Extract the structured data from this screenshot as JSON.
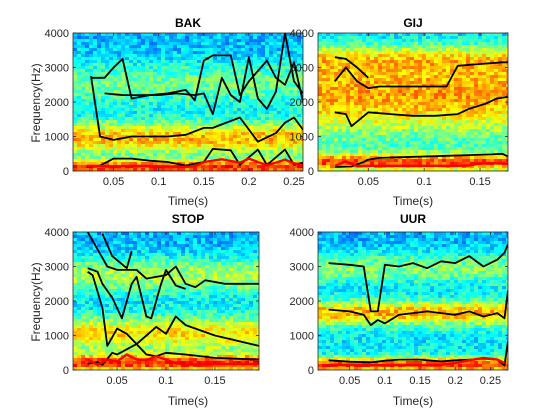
{
  "figure": {
    "colors": {
      "formant": "#000000",
      "pitch": "#ff0000",
      "axis": "#262626"
    },
    "panels": [
      {
        "title": "BAK",
        "xlabel": "Time(s)",
        "ylabel": "Frequency(Hz)",
        "xlim": [
          0.005,
          0.26
        ],
        "ylim": [
          0,
          4000
        ],
        "xticks": [
          "0.05",
          "0.1",
          "0.15",
          "0.2",
          "0.25"
        ],
        "xtick_values": [
          0.05,
          0.1,
          0.15,
          0.2,
          0.25
        ],
        "yticks": [
          "0",
          "1000",
          "2000",
          "3000",
          "4000"
        ],
        "ytick_values": [
          0,
          1000,
          2000,
          3000,
          4000
        ]
      },
      {
        "title": "GIJ",
        "xlabel": "Time(s)",
        "ylabel": "",
        "xlim": [
          0.005,
          0.175
        ],
        "ylim": [
          0,
          4000
        ],
        "xticks": [
          "0.05",
          "0.1",
          "0.15"
        ],
        "xtick_values": [
          0.05,
          0.1,
          0.15
        ],
        "yticks": [
          "0",
          "1000",
          "2000",
          "3000",
          "4000"
        ],
        "ytick_values": [
          0,
          1000,
          2000,
          3000,
          4000
        ]
      },
      {
        "title": "STOP",
        "xlabel": "Time(s)",
        "ylabel": "Frequency(Hz)",
        "xlim": [
          0.005,
          0.195
        ],
        "ylim": [
          0,
          4000
        ],
        "xticks": [
          "0.05",
          "0.1",
          "0.15"
        ],
        "xtick_values": [
          0.05,
          0.1,
          0.15
        ],
        "yticks": [
          "0",
          "1000",
          "2000",
          "3000",
          "4000"
        ],
        "ytick_values": [
          0,
          1000,
          2000,
          3000,
          4000
        ]
      },
      {
        "title": "UUR",
        "xlabel": "Time(s)",
        "ylabel": "",
        "xlim": [
          0.005,
          0.275
        ],
        "ylim": [
          0,
          4000
        ],
        "xticks": [
          "0.05",
          "0.1",
          "0.15",
          "0.2",
          "0.25"
        ],
        "xtick_values": [
          0.05,
          0.1,
          0.15,
          0.2,
          0.25
        ],
        "yticks": [
          "0",
          "1000",
          "2000",
          "3000",
          "4000"
        ],
        "ytick_values": [
          0,
          1000,
          2000,
          3000,
          4000
        ]
      }
    ]
  },
  "chart_data": [
    {
      "type": "line",
      "title": "BAK",
      "xlabel": "Time(s)",
      "ylabel": "Frequency(Hz)",
      "xlim": [
        0.005,
        0.26
      ],
      "ylim": [
        0,
        4000
      ],
      "background": "spectrogram",
      "bands": [
        {
          "center": 150,
          "width": 200,
          "strength": 1.0
        },
        {
          "center": 1000,
          "width": 450,
          "strength": 0.75
        },
        {
          "center": 2600,
          "width": 600,
          "strength": 0.35
        }
      ],
      "series": [
        {
          "role": "pitch",
          "x": [
            0.02,
            0.05,
            0.08,
            0.1,
            0.12,
            0.14,
            0.15,
            0.17,
            0.19,
            0.2,
            0.22,
            0.24,
            0.25,
            0.26
          ],
          "y": [
            150,
            140,
            150,
            140,
            120,
            130,
            260,
            340,
            240,
            360,
            160,
            330,
            220,
            160
          ]
        },
        {
          "role": "formant",
          "x": [
            0.02,
            0.035,
            0.05,
            0.07,
            0.09,
            0.11,
            0.13,
            0.15,
            0.16,
            0.18,
            0.19,
            0.21,
            0.22,
            0.24,
            0.25,
            0.26
          ],
          "y": [
            120,
            160,
            360,
            360,
            300,
            260,
            160,
            260,
            640,
            600,
            180,
            620,
            170,
            620,
            180,
            240
          ]
        },
        {
          "role": "formant",
          "x": [
            0.025,
            0.035,
            0.05,
            0.07,
            0.09,
            0.11,
            0.13,
            0.15,
            0.16,
            0.17,
            0.19,
            0.21,
            0.23,
            0.24,
            0.25,
            0.26
          ],
          "y": [
            2750,
            1000,
            900,
            1000,
            1000,
            1000,
            1050,
            1250,
            1250,
            1350,
            1550,
            850,
            1100,
            1400,
            1550,
            1200
          ]
        },
        {
          "role": "formant",
          "x": [
            0.025,
            0.04,
            0.05,
            0.06,
            0.07,
            0.09,
            0.11,
            0.13,
            0.14,
            0.15,
            0.16,
            0.18,
            0.19,
            0.2,
            0.22,
            0.23,
            0.24,
            0.25,
            0.26
          ],
          "y": [
            2700,
            2700,
            3000,
            3250,
            2100,
            2200,
            2250,
            2350,
            2050,
            3200,
            3350,
            3350,
            2200,
            2600,
            3200,
            2700,
            2500,
            3150,
            2000
          ]
        },
        {
          "role": "formant",
          "x": [
            0.04,
            0.06,
            0.08,
            0.1,
            0.12,
            0.14,
            0.15,
            0.16,
            0.17,
            0.18,
            0.19,
            0.2,
            0.21,
            0.22,
            0.23,
            0.24,
            0.25,
            0.26
          ],
          "y": [
            2250,
            2200,
            2200,
            2200,
            2250,
            2200,
            2250,
            1650,
            2700,
            2200,
            2000,
            3300,
            2100,
            1800,
            2300,
            4000,
            2600,
            2250
          ]
        }
      ]
    },
    {
      "type": "line",
      "title": "GIJ",
      "xlabel": "Time(s)",
      "ylabel": "",
      "xlim": [
        0.005,
        0.175
      ],
      "ylim": [
        0,
        4000
      ],
      "background": "spectrogram",
      "bands": [
        {
          "center": 300,
          "width": 250,
          "strength": 0.9
        },
        {
          "center": 2300,
          "width": 1200,
          "strength": 0.85
        },
        {
          "center": 3300,
          "width": 400,
          "strength": 0.4
        }
      ],
      "series": [
        {
          "role": "pitch",
          "x": [
            0.02,
            0.03,
            0.04,
            0.05,
            0.07,
            0.09,
            0.11,
            0.13,
            0.14,
            0.15,
            0.16,
            0.17,
            0.175
          ],
          "y": [
            150,
            280,
            140,
            150,
            150,
            150,
            150,
            150,
            160,
            220,
            230,
            220,
            210
          ]
        },
        {
          "role": "formant",
          "x": [
            0.02,
            0.035,
            0.045,
            0.05,
            0.06,
            0.08,
            0.1,
            0.12,
            0.14,
            0.16,
            0.17,
            0.175
          ],
          "y": [
            120,
            130,
            250,
            330,
            380,
            400,
            420,
            440,
            460,
            480,
            500,
            420
          ]
        },
        {
          "role": "formant",
          "x": [
            0.02,
            0.03,
            0.035,
            0.05,
            0.07,
            0.09,
            0.11,
            0.13,
            0.14,
            0.155,
            0.165,
            0.175
          ],
          "y": [
            1700,
            1650,
            1300,
            1700,
            1650,
            1600,
            1600,
            1650,
            1800,
            1950,
            2100,
            2150
          ]
        },
        {
          "role": "formant",
          "x": [
            0.02,
            0.03,
            0.04,
            0.05,
            0.06,
            0.08,
            0.1,
            0.12,
            0.13,
            0.15,
            0.17,
            0.175
          ],
          "y": [
            2600,
            3000,
            2600,
            2400,
            2450,
            2450,
            2450,
            2450,
            3050,
            3100,
            3150,
            3150
          ]
        },
        {
          "role": "formant",
          "x": [
            0.02,
            0.03,
            0.04,
            0.05
          ],
          "y": [
            3300,
            3250,
            3000,
            2700
          ]
        }
      ]
    },
    {
      "type": "line",
      "title": "STOP",
      "xlabel": "Time(s)",
      "ylabel": "Frequency(Hz)",
      "xlim": [
        0.005,
        0.195
      ],
      "ylim": [
        0,
        4000
      ],
      "background": "spectrogram",
      "bands": [
        {
          "center": 250,
          "width": 250,
          "strength": 1.0
        },
        {
          "center": 1100,
          "width": 500,
          "strength": 0.65
        },
        {
          "center": 2800,
          "width": 500,
          "strength": 0.5
        }
      ],
      "series": [
        {
          "role": "pitch",
          "x": [
            0.02,
            0.03,
            0.04,
            0.05,
            0.06,
            0.07,
            0.08,
            0.09,
            0.1,
            0.11,
            0.12,
            0.15,
            0.195
          ],
          "y": [
            300,
            150,
            300,
            250,
            450,
            300,
            280,
            400,
            300,
            200,
            150,
            170,
            170
          ]
        },
        {
          "role": "formant",
          "x": [
            0.02,
            0.03,
            0.035,
            0.045,
            0.05,
            0.06,
            0.07,
            0.08,
            0.09,
            0.1,
            0.12,
            0.15,
            0.195
          ],
          "y": [
            180,
            230,
            150,
            500,
            450,
            600,
            750,
            450,
            400,
            500,
            450,
            350,
            300
          ]
        },
        {
          "role": "formant",
          "x": [
            0.02,
            0.025,
            0.035,
            0.04,
            0.05,
            0.06,
            0.07,
            0.09,
            0.1,
            0.11,
            0.12,
            0.15,
            0.195
          ],
          "y": [
            2850,
            2750,
            1800,
            700,
            1200,
            1050,
            750,
            1250,
            1050,
            1550,
            1300,
            1000,
            700
          ]
        },
        {
          "role": "formant",
          "x": [
            0.02,
            0.03,
            0.035,
            0.045,
            0.055,
            0.065,
            0.07,
            0.08,
            0.085,
            0.095,
            0.1,
            0.11,
            0.12
          ],
          "y": [
            2950,
            2850,
            2500,
            2100,
            1500,
            2500,
            2700,
            1550,
            1500,
            2500,
            2900,
            2450,
            2350
          ]
        },
        {
          "role": "formant",
          "x": [
            0.02,
            0.04,
            0.05,
            0.07,
            0.08,
            0.09,
            0.1,
            0.11,
            0.12,
            0.13,
            0.14,
            0.16,
            0.18,
            0.195
          ],
          "y": [
            4000,
            3000,
            2900,
            2900,
            2650,
            2700,
            2750,
            3000,
            2500,
            2400,
            2600,
            2500,
            2500,
            2500
          ]
        },
        {
          "role": "formant",
          "x": [
            0.035,
            0.045,
            0.06,
            0.065
          ],
          "y": [
            3950,
            3300,
            2950,
            3450
          ]
        }
      ]
    },
    {
      "type": "line",
      "title": "UUR",
      "xlabel": "Time(s)",
      "ylabel": "",
      "xlim": [
        0.005,
        0.275
      ],
      "ylim": [
        0,
        4000
      ],
      "background": "spectrogram",
      "bands": [
        {
          "center": 200,
          "width": 200,
          "strength": 1.0
        },
        {
          "center": 1700,
          "width": 350,
          "strength": 0.8
        },
        {
          "center": 3000,
          "width": 450,
          "strength": 0.4
        }
      ],
      "series": [
        {
          "role": "pitch",
          "x": [
            0.02,
            0.05,
            0.08,
            0.1,
            0.12,
            0.15,
            0.18,
            0.2,
            0.22,
            0.24,
            0.26,
            0.27
          ],
          "y": [
            150,
            150,
            140,
            140,
            150,
            140,
            150,
            200,
            280,
            350,
            300,
            200
          ]
        },
        {
          "role": "formant",
          "x": [
            0.02,
            0.05,
            0.08,
            0.1,
            0.12,
            0.15,
            0.18,
            0.2,
            0.22,
            0.24,
            0.26,
            0.27,
            0.275
          ],
          "y": [
            280,
            240,
            220,
            270,
            300,
            300,
            250,
            280,
            300,
            330,
            300,
            130,
            850
          ]
        },
        {
          "role": "formant",
          "x": [
            0.02,
            0.05,
            0.07,
            0.08,
            0.09,
            0.1,
            0.12,
            0.14,
            0.16,
            0.18,
            0.2,
            0.22,
            0.24,
            0.26,
            0.27,
            0.275
          ],
          "y": [
            1750,
            1700,
            1600,
            1300,
            1450,
            1350,
            1600,
            1650,
            1700,
            1650,
            1600,
            1700,
            1550,
            1650,
            1500,
            2300
          ]
        },
        {
          "role": "formant",
          "x": [
            0.02,
            0.05,
            0.07,
            0.08,
            0.09,
            0.1,
            0.12,
            0.14,
            0.16,
            0.18,
            0.2,
            0.22,
            0.24,
            0.26,
            0.27,
            0.275
          ],
          "y": [
            3100,
            3050,
            3000,
            1700,
            1700,
            3050,
            3000,
            3100,
            2950,
            3150,
            3100,
            3300,
            3000,
            3200,
            3400,
            3650
          ]
        }
      ]
    }
  ]
}
